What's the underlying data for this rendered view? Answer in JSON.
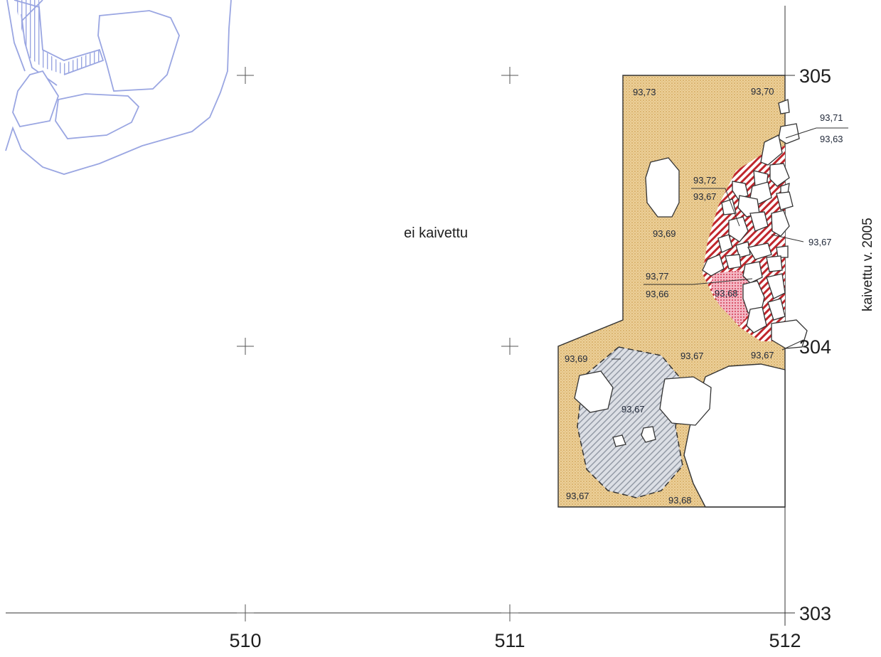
{
  "colors": {
    "sand": "#e9c98a",
    "sand_dots": "#c89540",
    "hatch_red": "#c0262c",
    "pink_dots": "#d23a52",
    "grey_hatch": "#9aa0aa",
    "blue_line": "#9aa6e2",
    "line": "#333333"
  },
  "axis": {
    "x_labels": [
      "510",
      "511",
      "512"
    ],
    "y_labels": [
      "305",
      "304",
      "303"
    ]
  },
  "notes": {
    "unexcavated": "ei kaivettu",
    "excavated_2005": "kaivettu v. 2005"
  },
  "levels": {
    "l1": "93,73",
    "l2": "93,70",
    "l3_top": "93,71",
    "l3_bottom": "93,63",
    "l4_top": "93,72",
    "l4_bottom": "93,67",
    "l5": "93,69",
    "l6": "93,67",
    "l7_top": "93,77",
    "l7_bottom": "93,66",
    "l8": "93,68",
    "l9": "93,69",
    "l10": "93,67",
    "l11": "93,67",
    "l12": "93,67",
    "l13": "93,67",
    "l14": "93,68"
  }
}
